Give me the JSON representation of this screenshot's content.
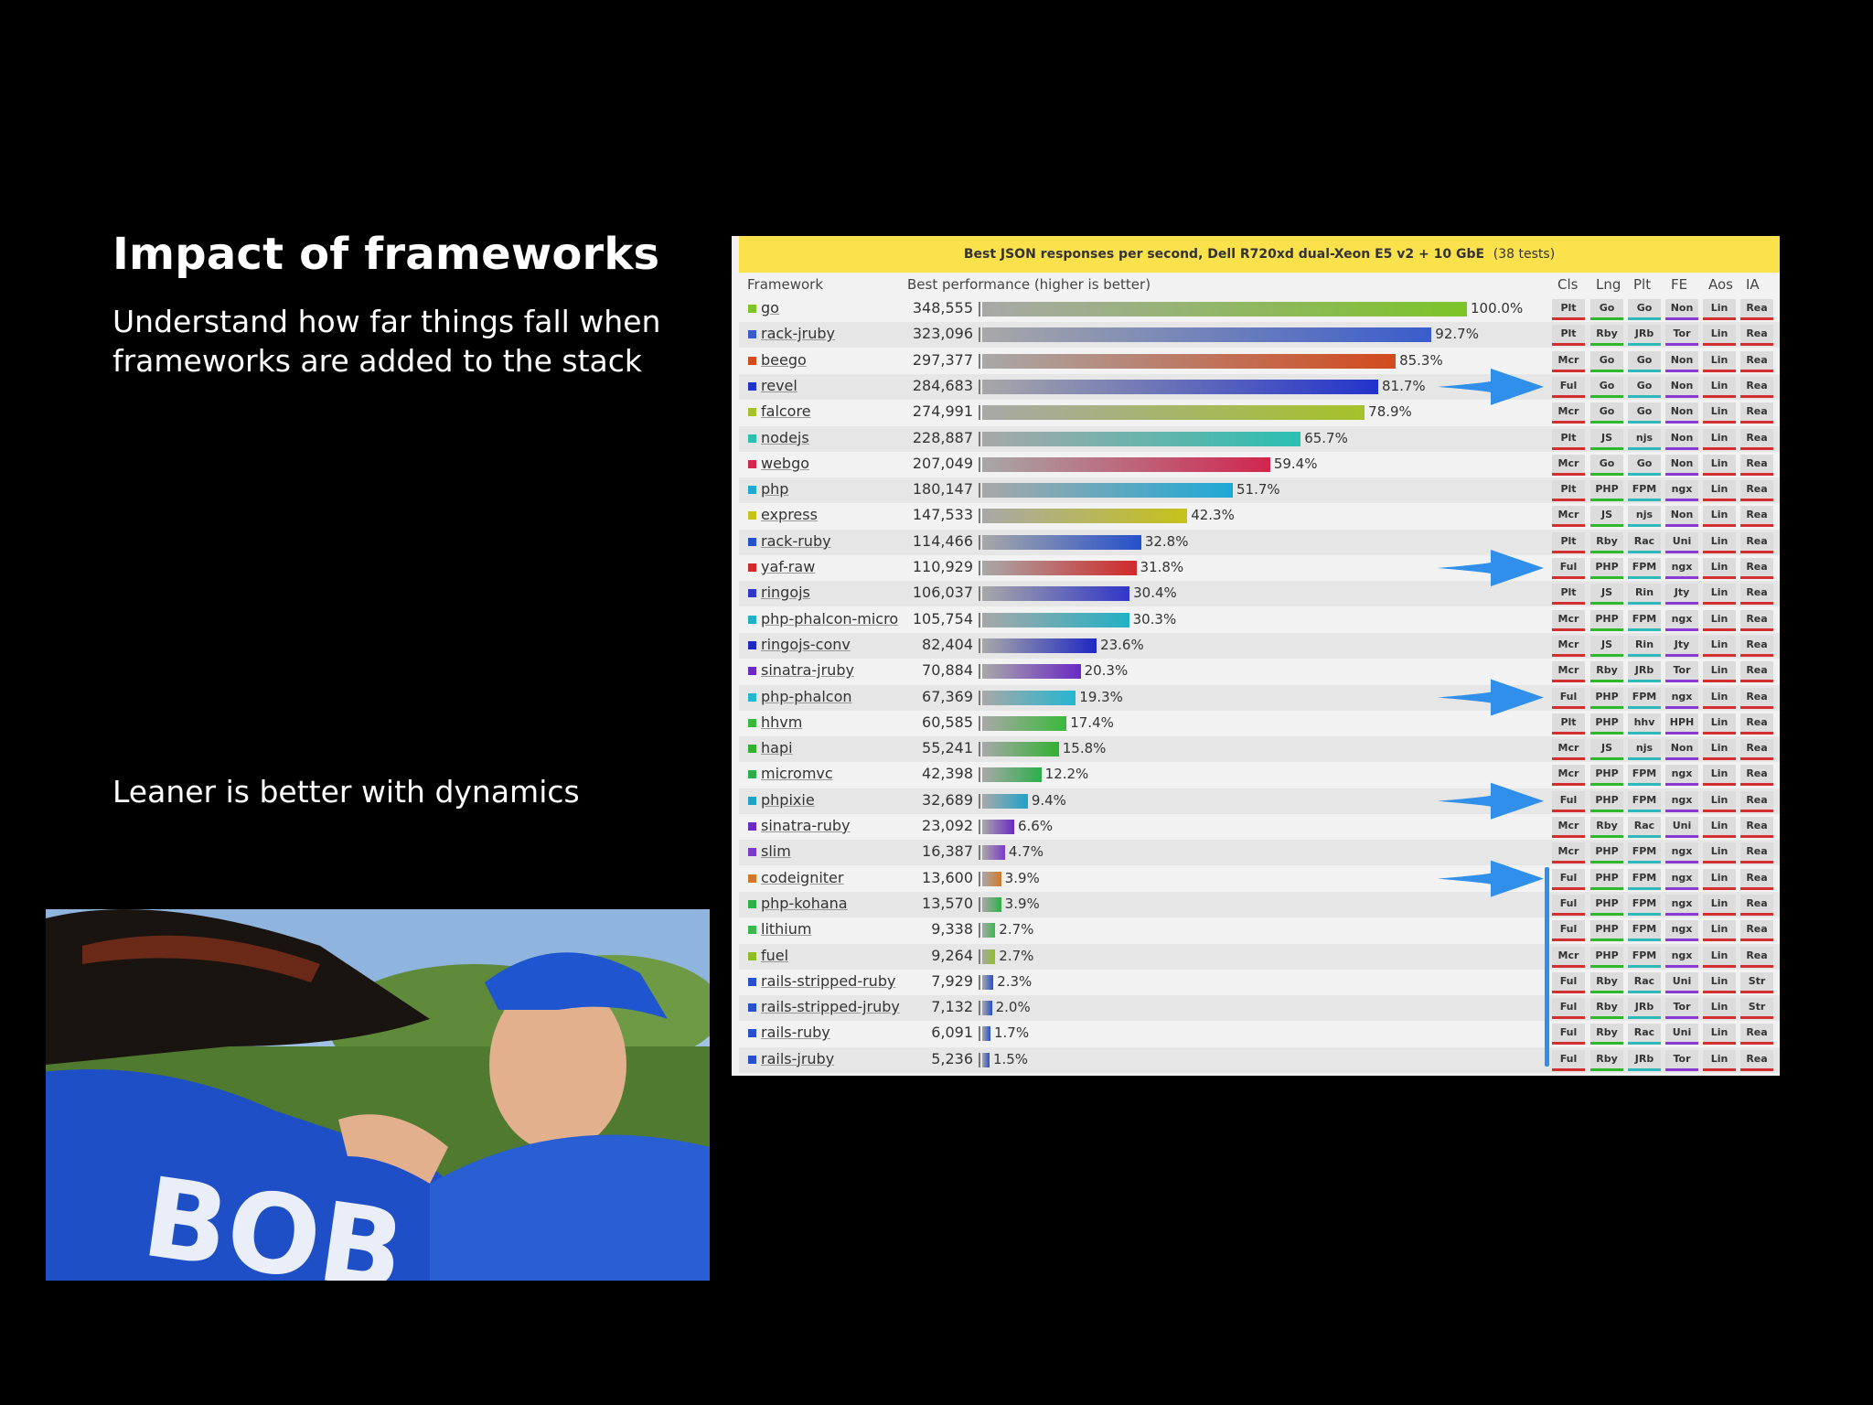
{
  "slide": {
    "title": "Impact of frameworks",
    "subtitle": "Understand how far things fall when frameworks are added to the stack",
    "note": "Leaner is better with dynamics"
  },
  "photo": {
    "jersey_text": "BOB"
  },
  "benchmark": {
    "title": "Best JSON responses per second, Dell R720xd dual-Xeon E5 v2 + 10 GbE",
    "tests": "(38 tests)",
    "col_framework": "Framework",
    "col_perf": "Best performance (higher is better)",
    "attr_headers": [
      "Cls",
      "Lng",
      "Plt",
      "FE",
      "Aos",
      "IA"
    ],
    "rows": [
      {
        "name": "go",
        "value": "348,555",
        "pct": 100.0,
        "pct_label": "100.0%",
        "color": "#7cc428",
        "attrs": [
          "Plt",
          "Go",
          "Go",
          "Non",
          "Lin",
          "Rea"
        ]
      },
      {
        "name": "rack-jruby",
        "value": "323,096",
        "pct": 92.7,
        "pct_label": "92.7%",
        "color": "#3a5ccc",
        "attrs": [
          "Plt",
          "Rby",
          "JRb",
          "Tor",
          "Lin",
          "Rea"
        ]
      },
      {
        "name": "beego",
        "value": "297,377",
        "pct": 85.3,
        "pct_label": "85.3%",
        "color": "#d24a1e",
        "attrs": [
          "Mcr",
          "Go",
          "Go",
          "Non",
          "Lin",
          "Rea"
        ]
      },
      {
        "name": "revel",
        "value": "284,683",
        "pct": 81.7,
        "pct_label": "81.7%",
        "color": "#2233cc",
        "attrs": [
          "Ful",
          "Go",
          "Go",
          "Non",
          "Lin",
          "Rea"
        ]
      },
      {
        "name": "falcore",
        "value": "274,991",
        "pct": 78.9,
        "pct_label": "78.9%",
        "color": "#a6c22a",
        "attrs": [
          "Mcr",
          "Go",
          "Go",
          "Non",
          "Lin",
          "Rea"
        ]
      },
      {
        "name": "nodejs",
        "value": "228,887",
        "pct": 65.7,
        "pct_label": "65.7%",
        "color": "#2bbfb0",
        "attrs": [
          "Plt",
          "JS",
          "njs",
          "Non",
          "Lin",
          "Rea"
        ]
      },
      {
        "name": "webgo",
        "value": "207,049",
        "pct": 59.4,
        "pct_label": "59.4%",
        "color": "#d1264e",
        "attrs": [
          "Mcr",
          "Go",
          "Go",
          "Non",
          "Lin",
          "Rea"
        ]
      },
      {
        "name": "php",
        "value": "180,147",
        "pct": 51.7,
        "pct_label": "51.7%",
        "color": "#1ea8d6",
        "attrs": [
          "Plt",
          "PHP",
          "FPM",
          "ngx",
          "Lin",
          "Rea"
        ]
      },
      {
        "name": "express",
        "value": "147,533",
        "pct": 42.3,
        "pct_label": "42.3%",
        "color": "#c6c21a",
        "attrs": [
          "Mcr",
          "JS",
          "njs",
          "Non",
          "Lin",
          "Rea"
        ]
      },
      {
        "name": "rack-ruby",
        "value": "114,466",
        "pct": 32.8,
        "pct_label": "32.8%",
        "color": "#2650cc",
        "attrs": [
          "Plt",
          "Rby",
          "Rac",
          "Uni",
          "Lin",
          "Rea"
        ]
      },
      {
        "name": "yaf-raw",
        "value": "110,929",
        "pct": 31.8,
        "pct_label": "31.8%",
        "color": "#d02a2a",
        "attrs": [
          "Ful",
          "PHP",
          "FPM",
          "ngx",
          "Lin",
          "Rea"
        ]
      },
      {
        "name": "ringojs",
        "value": "106,037",
        "pct": 30.4,
        "pct_label": "30.4%",
        "color": "#3036c8",
        "attrs": [
          "Plt",
          "JS",
          "Rin",
          "Jty",
          "Lin",
          "Rea"
        ]
      },
      {
        "name": "php-phalcon-micro",
        "value": "105,754",
        "pct": 30.3,
        "pct_label": "30.3%",
        "color": "#22b0c4",
        "attrs": [
          "Mcr",
          "PHP",
          "FPM",
          "ngx",
          "Lin",
          "Rea"
        ]
      },
      {
        "name": "ringojs-conv",
        "value": "82,404",
        "pct": 23.6,
        "pct_label": "23.6%",
        "color": "#1f28c2",
        "attrs": [
          "Mcr",
          "JS",
          "Rin",
          "Jty",
          "Lin",
          "Rea"
        ]
      },
      {
        "name": "sinatra-jruby",
        "value": "70,884",
        "pct": 20.3,
        "pct_label": "20.3%",
        "color": "#6a2ac4",
        "attrs": [
          "Mcr",
          "Rby",
          "JRb",
          "Tor",
          "Lin",
          "Rea"
        ]
      },
      {
        "name": "php-phalcon",
        "value": "67,369",
        "pct": 19.3,
        "pct_label": "19.3%",
        "color": "#24b6d0",
        "attrs": [
          "Ful",
          "PHP",
          "FPM",
          "ngx",
          "Lin",
          "Rea"
        ]
      },
      {
        "name": "hhvm",
        "value": "60,585",
        "pct": 17.4,
        "pct_label": "17.4%",
        "color": "#3ab83a",
        "attrs": [
          "Plt",
          "PHP",
          "hhv",
          "HPH",
          "Lin",
          "Rea"
        ]
      },
      {
        "name": "hapi",
        "value": "55,241",
        "pct": 15.8,
        "pct_label": "15.8%",
        "color": "#32b032",
        "attrs": [
          "Mcr",
          "JS",
          "njs",
          "Non",
          "Lin",
          "Rea"
        ]
      },
      {
        "name": "micromvc",
        "value": "42,398",
        "pct": 12.2,
        "pct_label": "12.2%",
        "color": "#2cae4c",
        "attrs": [
          "Mcr",
          "PHP",
          "FPM",
          "ngx",
          "Lin",
          "Rea"
        ]
      },
      {
        "name": "phpixie",
        "value": "32,689",
        "pct": 9.4,
        "pct_label": "9.4%",
        "color": "#20a2c8",
        "attrs": [
          "Ful",
          "PHP",
          "FPM",
          "ngx",
          "Lin",
          "Rea"
        ]
      },
      {
        "name": "sinatra-ruby",
        "value": "23,092",
        "pct": 6.6,
        "pct_label": "6.6%",
        "color": "#6a2ac4",
        "attrs": [
          "Mcr",
          "Rby",
          "Rac",
          "Uni",
          "Lin",
          "Rea"
        ]
      },
      {
        "name": "slim",
        "value": "16,387",
        "pct": 4.7,
        "pct_label": "4.7%",
        "color": "#7a3ac8",
        "attrs": [
          "Mcr",
          "PHP",
          "FPM",
          "ngx",
          "Lin",
          "Rea"
        ]
      },
      {
        "name": "codeigniter",
        "value": "13,600",
        "pct": 3.9,
        "pct_label": "3.9%",
        "color": "#d2782a",
        "attrs": [
          "Ful",
          "PHP",
          "FPM",
          "ngx",
          "Lin",
          "Rea"
        ]
      },
      {
        "name": "php-kohana",
        "value": "13,570",
        "pct": 3.9,
        "pct_label": "3.9%",
        "color": "#2eb048",
        "attrs": [
          "Ful",
          "PHP",
          "FPM",
          "ngx",
          "Lin",
          "Rea"
        ]
      },
      {
        "name": "lithium",
        "value": "9,338",
        "pct": 2.7,
        "pct_label": "2.7%",
        "color": "#3ab84e",
        "attrs": [
          "Ful",
          "PHP",
          "FPM",
          "ngx",
          "Lin",
          "Rea"
        ]
      },
      {
        "name": "fuel",
        "value": "9,264",
        "pct": 2.7,
        "pct_label": "2.7%",
        "color": "#8cbf26",
        "attrs": [
          "Mcr",
          "PHP",
          "FPM",
          "ngx",
          "Lin",
          "Rea"
        ]
      },
      {
        "name": "rails-stripped-ruby",
        "value": "7,929",
        "pct": 2.3,
        "pct_label": "2.3%",
        "color": "#2650cc",
        "attrs": [
          "Ful",
          "Rby",
          "Rac",
          "Uni",
          "Lin",
          "Str"
        ]
      },
      {
        "name": "rails-stripped-jruby",
        "value": "7,132",
        "pct": 2.0,
        "pct_label": "2.0%",
        "color": "#2650cc",
        "attrs": [
          "Ful",
          "Rby",
          "JRb",
          "Tor",
          "Lin",
          "Str"
        ]
      },
      {
        "name": "rails-ruby",
        "value": "6,091",
        "pct": 1.7,
        "pct_label": "1.7%",
        "color": "#2650cc",
        "attrs": [
          "Ful",
          "Rby",
          "Rac",
          "Uni",
          "Lin",
          "Rea"
        ]
      },
      {
        "name": "rails-jruby",
        "value": "5,236",
        "pct": 1.5,
        "pct_label": "1.5%",
        "color": "#2650cc",
        "attrs": [
          "Ful",
          "Rby",
          "JRb",
          "Tor",
          "Lin",
          "Rea"
        ]
      }
    ],
    "attr_colors": [
      "#d23030",
      "#2eb82e",
      "#2eb8b8",
      "#8a3ad2",
      "#d23030",
      "#d23030"
    ],
    "arrow_color": "#2f8fea"
  }
}
